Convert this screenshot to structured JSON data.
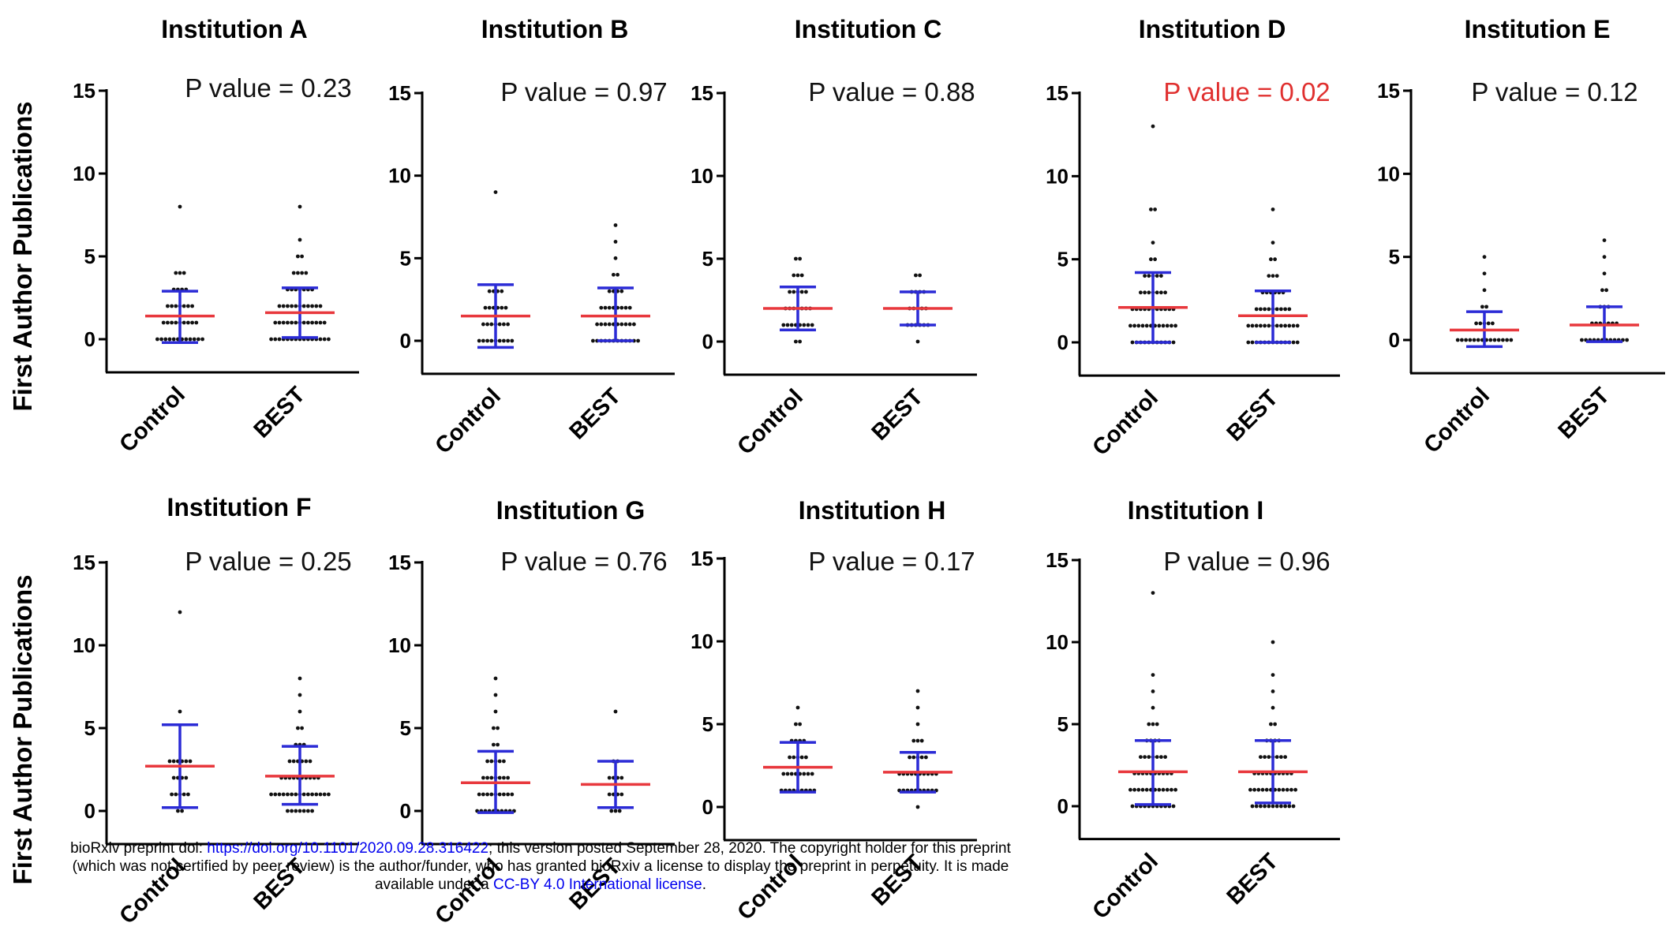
{
  "chart_data": {
    "type": "scatter",
    "y_label": "First Author Publications",
    "categories": [
      "Control",
      "BEST"
    ],
    "ylim": [
      -2,
      15
    ],
    "y_ticks": [
      0,
      5,
      10,
      15
    ],
    "legend": "none",
    "grid": false,
    "colors": {
      "mean_line": "#e8383d",
      "error_bar": "#2b2bd6",
      "points": "#111111",
      "significant_p": "#e0302f"
    },
    "panels": [
      {
        "title": "Institution A",
        "p_label": "P value = 0.23",
        "significant": false,
        "groups": [
          {
            "name": "Control",
            "mean": 1.4,
            "sd_low": -0.2,
            "sd_high": 2.9,
            "values": [
              0,
              0,
              0,
              0,
              0,
              0,
              0,
              0,
              0,
              0,
              0,
              0,
              1,
              1,
              1,
              1,
              1,
              1,
              1,
              1,
              1,
              2,
              2,
              2,
              2,
              2,
              2,
              2,
              3,
              3,
              3,
              3,
              4,
              4,
              4,
              8
            ]
          },
          {
            "name": "BEST",
            "mean": 1.6,
            "sd_low": 0.1,
            "sd_high": 3.1,
            "values": [
              0,
              0,
              0,
              0,
              0,
              0,
              0,
              0,
              0,
              0,
              0,
              0,
              0,
              0,
              0,
              1,
              1,
              1,
              1,
              1,
              1,
              1,
              1,
              1,
              1,
              1,
              1,
              1,
              2,
              2,
              2,
              2,
              2,
              2,
              2,
              2,
              2,
              2,
              2,
              3,
              3,
              3,
              3,
              3,
              3,
              3,
              4,
              4,
              4,
              4,
              5,
              5,
              6,
              8
            ]
          }
        ]
      },
      {
        "title": "Institution B",
        "p_label": "P value = 0.97",
        "significant": false,
        "groups": [
          {
            "name": "Control",
            "mean": 1.5,
            "sd_low": -0.4,
            "sd_high": 3.4,
            "values": [
              0,
              0,
              0,
              0,
              0,
              0,
              0,
              0,
              0,
              1,
              1,
              1,
              1,
              1,
              1,
              1,
              2,
              2,
              2,
              2,
              2,
              2,
              3,
              3,
              3,
              3,
              9
            ]
          },
          {
            "name": "BEST",
            "mean": 1.5,
            "sd_low": 0.0,
            "sd_high": 3.2,
            "values": [
              0,
              0,
              0,
              0,
              0,
              0,
              0,
              0,
              0,
              0,
              0,
              0,
              1,
              1,
              1,
              1,
              1,
              1,
              1,
              1,
              1,
              1,
              2,
              2,
              2,
              2,
              2,
              2,
              2,
              2,
              3,
              3,
              3,
              3,
              4,
              4,
              5,
              6,
              7
            ]
          }
        ]
      },
      {
        "title": "Institution C",
        "p_label": "P value = 0.88",
        "significant": false,
        "groups": [
          {
            "name": "Control",
            "mean": 2.0,
            "sd_low": 0.7,
            "sd_high": 3.3,
            "values": [
              0,
              0,
              1,
              1,
              1,
              1,
              1,
              1,
              1,
              1,
              2,
              2,
              2,
              2,
              2,
              2,
              2,
              3,
              3,
              3,
              3,
              3,
              4,
              4,
              4,
              5,
              5
            ]
          },
          {
            "name": "BEST",
            "mean": 2.0,
            "sd_low": 1.0,
            "sd_high": 3.0,
            "values": [
              0,
              1,
              1,
              1,
              1,
              1,
              1,
              2,
              2,
              2,
              2,
              2,
              3,
              3,
              3,
              3,
              4,
              4
            ]
          }
        ]
      },
      {
        "title": "Institution D",
        "p_label": "P value = 0.02",
        "significant": true,
        "groups": [
          {
            "name": "Control",
            "mean": 2.1,
            "sd_low": 0.0,
            "sd_high": 4.2,
            "values": [
              0,
              0,
              0,
              0,
              0,
              0,
              0,
              0,
              0,
              0,
              0,
              1,
              1,
              1,
              1,
              1,
              1,
              1,
              1,
              1,
              1,
              1,
              1,
              2,
              2,
              2,
              2,
              2,
              2,
              2,
              2,
              2,
              2,
              2,
              3,
              3,
              3,
              3,
              3,
              3,
              3,
              4,
              4,
              4,
              4,
              4,
              5,
              5,
              6,
              8,
              8,
              13
            ]
          },
          {
            "name": "BEST",
            "mean": 1.6,
            "sd_low": 0.0,
            "sd_high": 3.1,
            "values": [
              0,
              0,
              0,
              0,
              0,
              0,
              0,
              0,
              0,
              0,
              0,
              0,
              0,
              1,
              1,
              1,
              1,
              1,
              1,
              1,
              1,
              1,
              1,
              1,
              1,
              1,
              2,
              2,
              2,
              2,
              2,
              2,
              2,
              2,
              2,
              3,
              3,
              3,
              3,
              3,
              3,
              4,
              4,
              4,
              5,
              5,
              6,
              8
            ]
          }
        ]
      },
      {
        "title": "Institution E",
        "p_label": "P value = 0.12",
        "significant": false,
        "groups": [
          {
            "name": "Control",
            "mean": 0.6,
            "sd_low": -0.4,
            "sd_high": 1.7,
            "values": [
              0,
              0,
              0,
              0,
              0,
              0,
              0,
              0,
              0,
              0,
              0,
              0,
              0,
              0,
              1,
              1,
              1,
              1,
              1,
              2,
              2,
              3,
              4,
              5
            ]
          },
          {
            "name": "BEST",
            "mean": 0.9,
            "sd_low": -0.1,
            "sd_high": 2.0,
            "values": [
              0,
              0,
              0,
              0,
              0,
              0,
              0,
              0,
              0,
              0,
              0,
              0,
              1,
              1,
              1,
              1,
              1,
              1,
              1,
              2,
              2,
              2,
              3,
              3,
              4,
              5,
              6
            ]
          }
        ]
      },
      {
        "title": "Institution F",
        "p_label": "P value = 0.25",
        "significant": false,
        "groups": [
          {
            "name": "Control",
            "mean": 2.7,
            "sd_low": 0.2,
            "sd_high": 5.2,
            "values": [
              0,
              0,
              1,
              1,
              1,
              1,
              1,
              2,
              2,
              2,
              2,
              3,
              3,
              3,
              3,
              3,
              3,
              6,
              12
            ]
          },
          {
            "name": "BEST",
            "mean": 2.1,
            "sd_low": 0.4,
            "sd_high": 3.9,
            "values": [
              0,
              0,
              0,
              0,
              0,
              0,
              0,
              1,
              1,
              1,
              1,
              1,
              1,
              1,
              1,
              1,
              1,
              1,
              1,
              1,
              1,
              1,
              2,
              2,
              2,
              2,
              2,
              2,
              2,
              2,
              2,
              2,
              3,
              3,
              3,
              3,
              3,
              3,
              4,
              4,
              4,
              5,
              5,
              6,
              7,
              8
            ]
          }
        ]
      },
      {
        "title": "Institution G",
        "p_label": "P value = 0.76",
        "significant": false,
        "groups": [
          {
            "name": "Control",
            "mean": 1.7,
            "sd_low": -0.1,
            "sd_high": 3.6,
            "values": [
              0,
              0,
              0,
              0,
              0,
              0,
              0,
              0,
              0,
              0,
              1,
              1,
              1,
              1,
              1,
              1,
              1,
              1,
              1,
              2,
              2,
              2,
              2,
              2,
              2,
              2,
              3,
              3,
              3,
              3,
              3,
              4,
              4,
              5,
              5,
              6,
              7,
              8
            ]
          },
          {
            "name": "BEST",
            "mean": 1.6,
            "sd_low": 0.2,
            "sd_high": 3.0,
            "values": [
              0,
              0,
              0,
              1,
              1,
              1,
              1,
              2,
              2,
              2,
              2,
              3,
              3,
              6
            ]
          }
        ]
      },
      {
        "title": "Institution H",
        "p_label": "P value = 0.17",
        "significant": false,
        "groups": [
          {
            "name": "Control",
            "mean": 2.4,
            "sd_low": 0.9,
            "sd_high": 3.9,
            "values": [
              1,
              1,
              1,
              1,
              1,
              1,
              1,
              1,
              1,
              2,
              2,
              2,
              2,
              2,
              2,
              2,
              2,
              3,
              3,
              3,
              3,
              3,
              4,
              4,
              4,
              4,
              5,
              5,
              6
            ]
          },
          {
            "name": "BEST",
            "mean": 2.1,
            "sd_low": 0.9,
            "sd_high": 3.3,
            "values": [
              0,
              1,
              1,
              1,
              1,
              1,
              1,
              1,
              1,
              1,
              1,
              2,
              2,
              2,
              2,
              2,
              2,
              2,
              2,
              2,
              2,
              3,
              3,
              3,
              3,
              3,
              4,
              4,
              4,
              5,
              6,
              7
            ]
          }
        ]
      },
      {
        "title": "Institution I",
        "p_label": "P value = 0.96",
        "significant": false,
        "groups": [
          {
            "name": "Control",
            "mean": 2.1,
            "sd_low": 0.1,
            "sd_high": 4.0,
            "values": [
              0,
              0,
              0,
              0,
              0,
              0,
              0,
              0,
              0,
              0,
              0,
              1,
              1,
              1,
              1,
              1,
              1,
              1,
              1,
              1,
              1,
              1,
              1,
              2,
              2,
              2,
              2,
              2,
              2,
              2,
              2,
              2,
              2,
              3,
              3,
              3,
              3,
              3,
              3,
              3,
              4,
              4,
              4,
              4,
              5,
              5,
              5,
              6,
              7,
              8,
              13
            ]
          },
          {
            "name": "BEST",
            "mean": 2.1,
            "sd_low": 0.2,
            "sd_high": 4.0,
            "values": [
              0,
              0,
              0,
              0,
              0,
              0,
              0,
              0,
              0,
              0,
              0,
              1,
              1,
              1,
              1,
              1,
              1,
              1,
              1,
              1,
              1,
              1,
              1,
              2,
              2,
              2,
              2,
              2,
              2,
              2,
              2,
              2,
              2,
              3,
              3,
              3,
              3,
              3,
              3,
              3,
              4,
              4,
              4,
              4,
              5,
              5,
              6,
              7,
              8,
              10
            ]
          }
        ]
      }
    ]
  },
  "footer": {
    "line1_pre": "bioRxiv preprint doi: ",
    "doi_link": "https://doi.org/10.1101/2020.09.28.316422",
    "line1_post": "; this version posted September 28, 2020. The copyright holder for this preprint",
    "line2": "(which was not certified by peer review) is the author/funder, who has granted bioRxiv a license to display the preprint in perpetuity. It is made",
    "line3_pre": "available under a",
    "license_link": "CC-BY 4.0 International license",
    "line3_post": "."
  }
}
